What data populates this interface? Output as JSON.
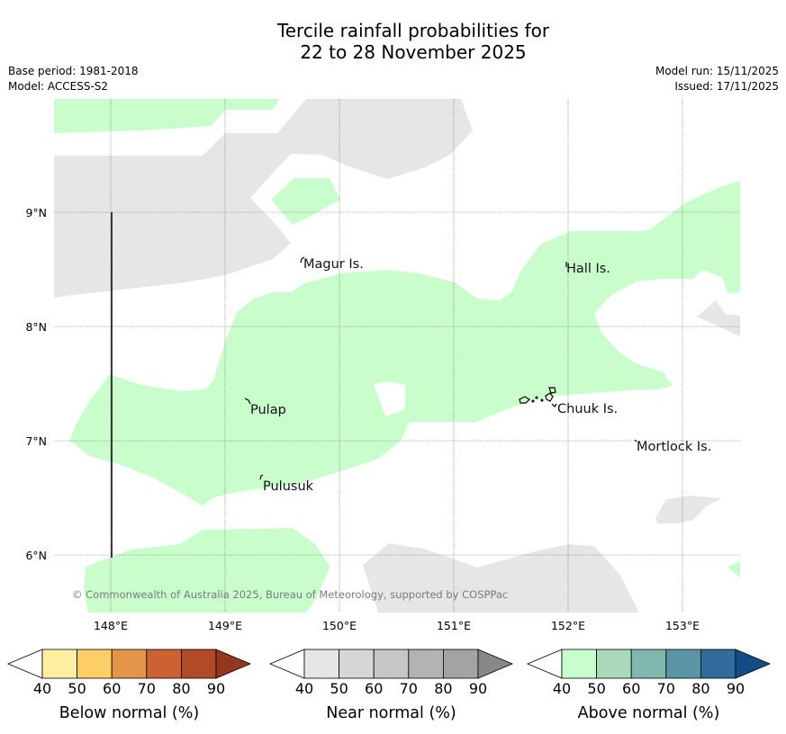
{
  "title": {
    "line1": "Tercile rainfall probabilities for",
    "line2": "22 to 28 November 2025"
  },
  "meta_left": {
    "base_period": "Base period: 1981-2018",
    "model": "Model: ACCESS-S2"
  },
  "meta_right": {
    "model_run": "Model run: 15/11/2025",
    "issued": "Issued: 17/11/2025"
  },
  "map": {
    "lat_labels": [
      "9°N",
      "8°N",
      "7°N",
      "6°N"
    ],
    "lon_labels": [
      "148°E",
      "149°E",
      "150°E",
      "151°E",
      "152°E",
      "153°E"
    ],
    "places": [
      {
        "name": "Magur Is."
      },
      {
        "name": "Hall Is."
      },
      {
        "name": "Pulap"
      },
      {
        "name": "Chuuk Is."
      },
      {
        "name": "Mortlock Is."
      },
      {
        "name": "Pulusuk"
      }
    ],
    "copyright": "© Commonwealth of Australia 2025, Bureau of Meteorology, supported by COSPPac",
    "colors": {
      "near_normal_fill": "#e6e6e6",
      "above_normal_fill": "#c9fecc"
    }
  },
  "legend": {
    "ticks": [
      "40",
      "50",
      "60",
      "70",
      "80",
      "90"
    ],
    "bars": [
      {
        "title": "Below normal (%)",
        "colors": [
          "#ffeda0",
          "#fdcd66",
          "#e3954a",
          "#cc6232",
          "#b04a27",
          "#94371f"
        ]
      },
      {
        "title": "Near normal (%)",
        "colors": [
          "#e6e6e6",
          "#d6d6d6",
          "#c6c6c6",
          "#b3b3b3",
          "#a3a3a3",
          "#888888"
        ]
      },
      {
        "title": "Above normal (%)",
        "colors": [
          "#c9fecc",
          "#a9d9b9",
          "#80b8b0",
          "#5b95a4",
          "#336a9e",
          "#134d88"
        ]
      }
    ]
  }
}
